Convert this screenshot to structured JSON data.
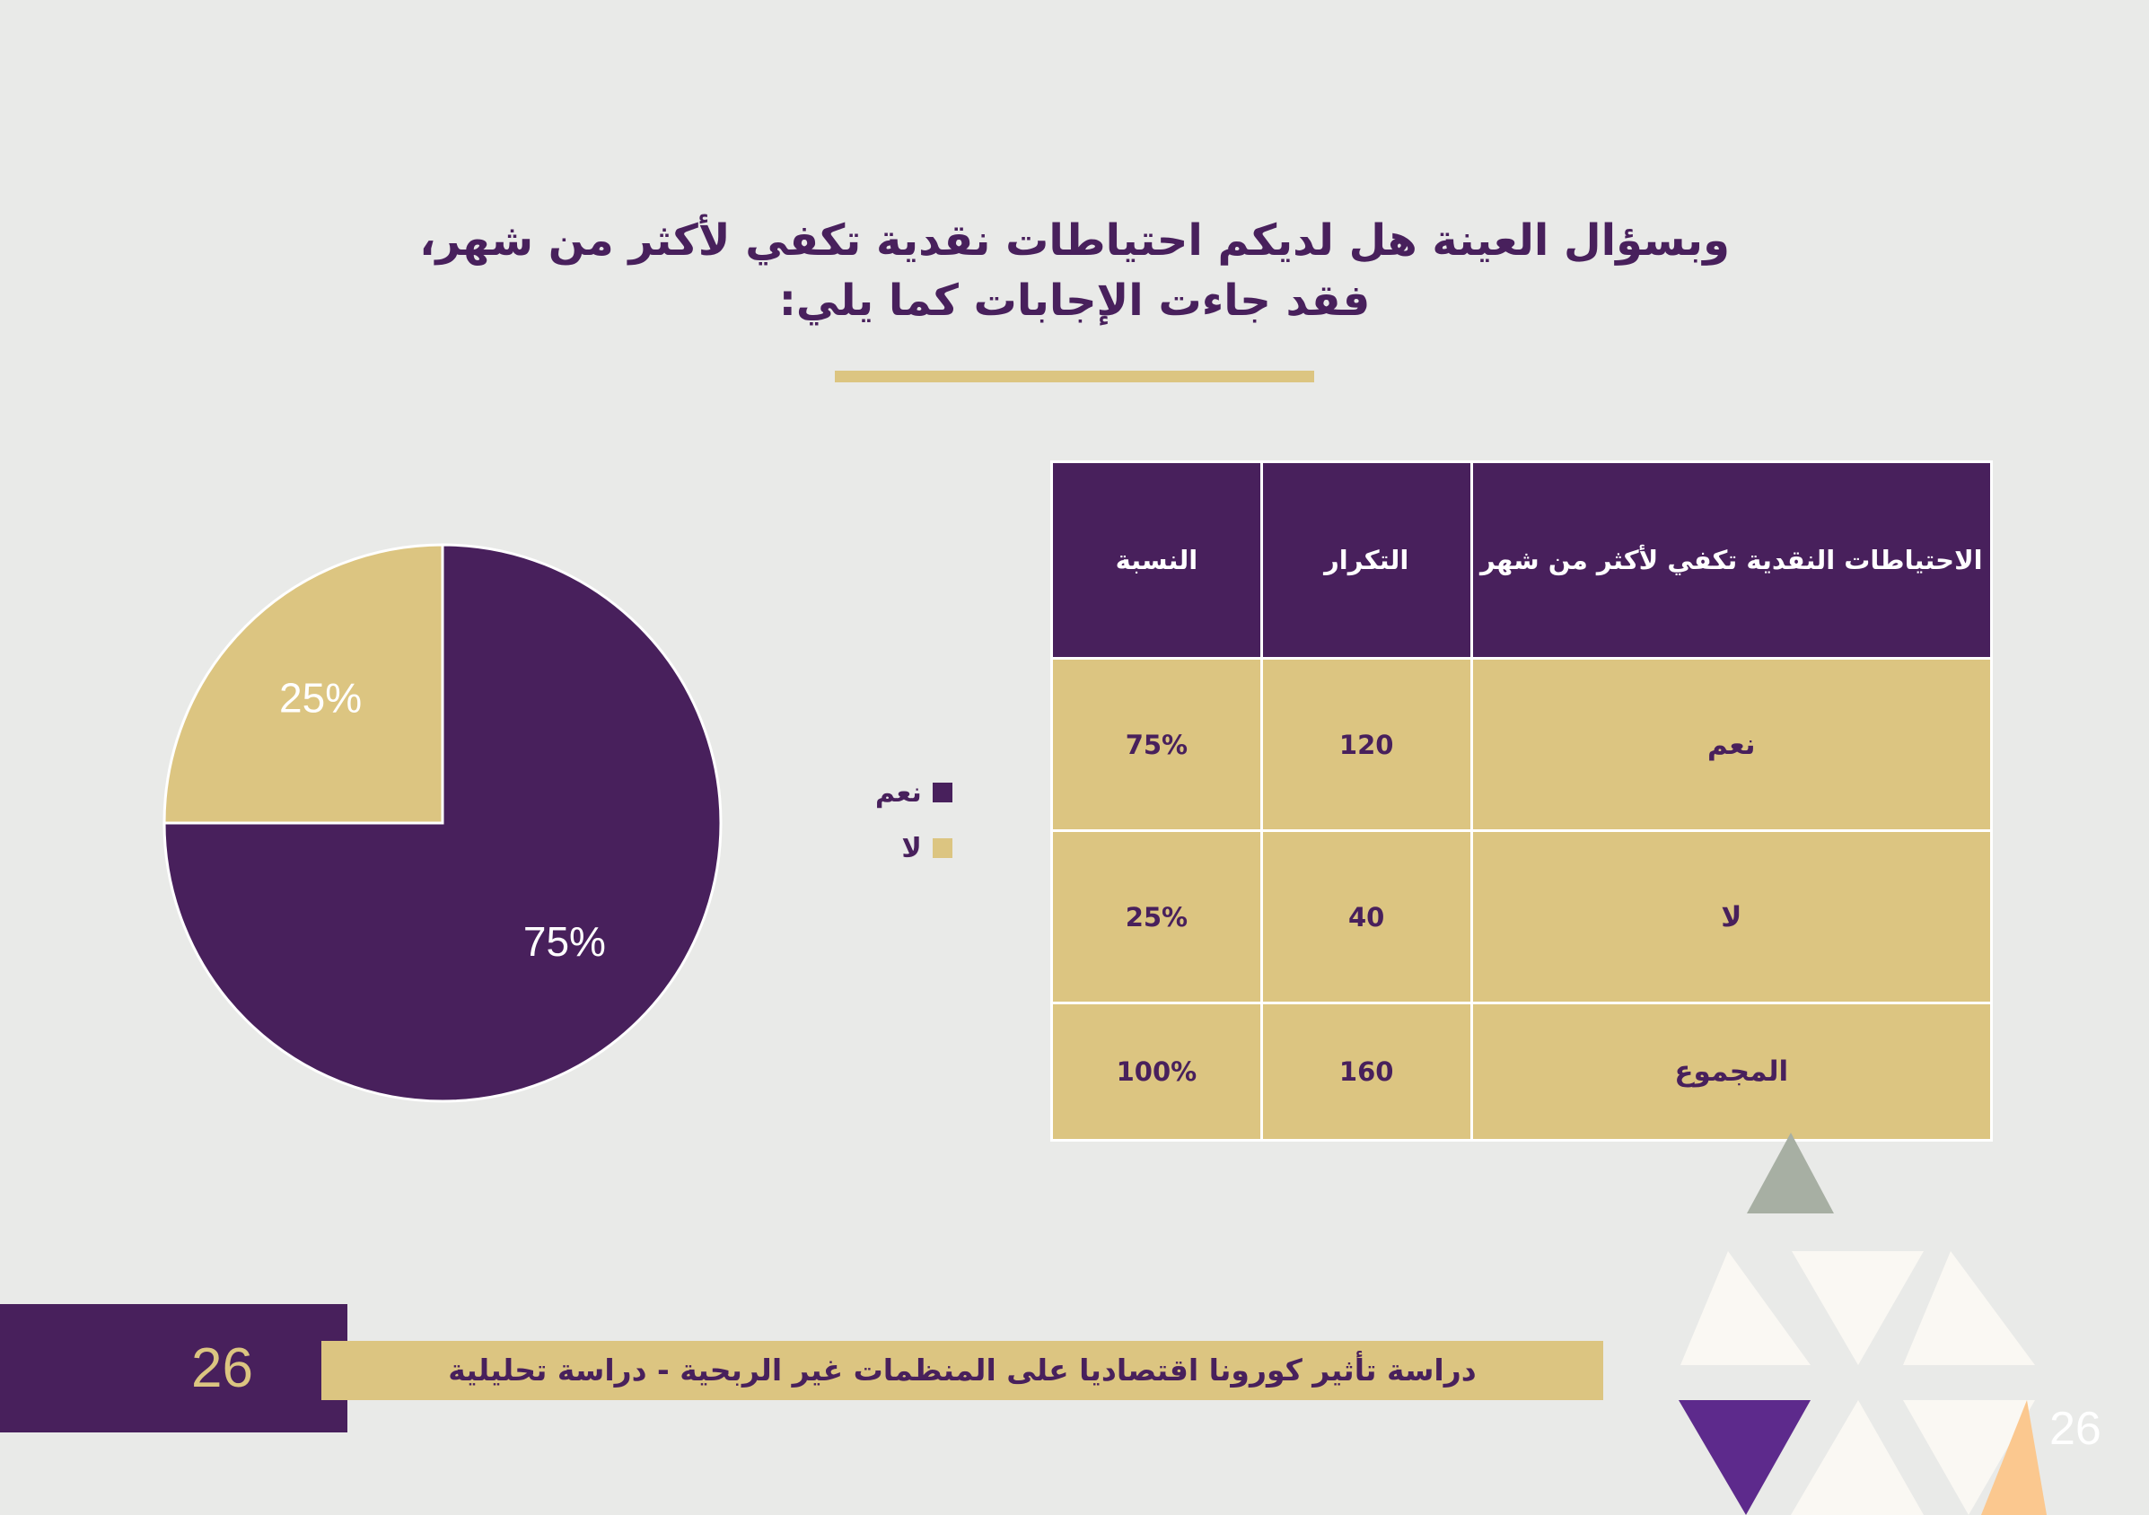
{
  "heading": {
    "line1": "وبسؤال العينة هل لديكم احتياطات نقدية تكفي لأكثر من شهر،",
    "line2": "فقد جاءت الإجابات كما يلي:"
  },
  "colors": {
    "purple": "#48205c",
    "gold": "#dcc581"
  },
  "chart_data": {
    "type": "pie",
    "categories": [
      "نعم",
      "لا"
    ],
    "values": [
      75,
      25
    ],
    "labels": [
      "75%",
      "25%"
    ],
    "colors": [
      "#48205c",
      "#dcc581"
    ],
    "legend_position": "right"
  },
  "table": {
    "headers": [
      "الاحتياطات النقدية تكفي لأكثر من شهر",
      "التكرار",
      "النسبة"
    ],
    "rows": [
      [
        "نعم",
        "120",
        "75%"
      ],
      [
        "لا",
        "40",
        "25%"
      ],
      [
        "المجموع",
        "160",
        "100%"
      ]
    ]
  },
  "footer": {
    "page_number": "26",
    "title": "دراسة تأثير كورونا اقتصاديا على المنظمات غير الربحية - دراسة تحليلية",
    "corner_number": "26"
  }
}
